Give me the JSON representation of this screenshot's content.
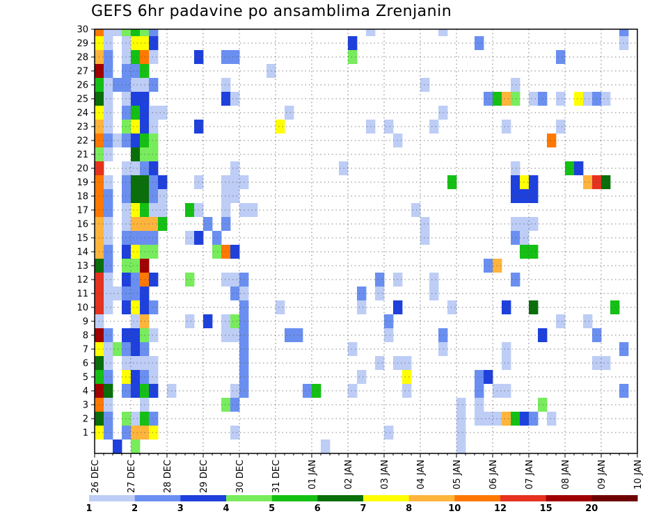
{
  "chart_data": {
    "type": "heatmap",
    "title": "GEFS 6hr padavine po ansamblima Zrenjanin",
    "y_members": [
      1,
      2,
      3,
      4,
      5,
      6,
      7,
      8,
      9,
      10,
      11,
      12,
      13,
      14,
      15,
      16,
      17,
      18,
      19,
      20,
      21,
      22,
      23,
      24,
      25,
      26,
      27,
      28,
      29,
      30
    ],
    "y_tick_labels": [
      "1",
      "2",
      "3",
      "4",
      "5",
      "6",
      "7",
      "8",
      "9",
      "10",
      "11",
      "12",
      "13",
      "14",
      "15",
      "16",
      "17",
      "18",
      "19",
      "20",
      "21",
      "22",
      "23",
      "24",
      "25",
      "26",
      "27",
      "28",
      "29",
      "30"
    ],
    "x_tick_labels": [
      "26 DEC",
      "27 DEC",
      "28 DEC",
      "29 DEC",
      "30 DEC",
      "31 DEC",
      "01 JAN",
      "02 JAN",
      "03 JAN",
      "04 JAN",
      "05 JAN",
      "06 JAN",
      "07 JAN",
      "08 JAN",
      "09 JAN",
      "10 JAN"
    ],
    "time_step": "6hr",
    "grid": true,
    "colorbar": {
      "colors": [
        "#bdcdf5",
        "#6a8ff0",
        "#1e40dc",
        "#78ec5c",
        "#14c014",
        "#0a6e0a",
        "#ffff00",
        "#ffb43c",
        "#ff7800",
        "#e6321e",
        "#a00000",
        "#6e0000"
      ],
      "labels": [
        "1",
        "2",
        "3",
        "4",
        "5",
        "6",
        "7",
        "8",
        "10",
        "12",
        "15",
        "20"
      ]
    },
    "cells": [
      [
        0,
        1,
        7
      ],
      [
        0,
        2,
        6
      ],
      [
        0,
        3,
        9
      ],
      [
        0,
        4,
        11
      ],
      [
        0,
        5,
        5
      ],
      [
        0,
        6,
        6
      ],
      [
        0,
        7,
        7
      ],
      [
        0,
        8,
        11
      ],
      [
        0,
        9,
        1
      ],
      [
        0,
        10,
        10
      ],
      [
        0,
        11,
        10
      ],
      [
        0,
        12,
        10
      ],
      [
        0,
        13,
        6
      ],
      [
        0,
        14,
        8
      ],
      [
        0,
        15,
        8
      ],
      [
        0,
        16,
        8
      ],
      [
        0,
        17,
        9
      ],
      [
        0,
        18,
        9
      ],
      [
        0,
        19,
        9
      ],
      [
        0,
        20,
        10
      ],
      [
        0,
        21,
        4
      ],
      [
        0,
        22,
        9
      ],
      [
        0,
        23,
        8
      ],
      [
        0,
        24,
        7
      ],
      [
        0,
        25,
        6
      ],
      [
        0,
        26,
        5
      ],
      [
        0,
        27,
        11
      ],
      [
        0,
        28,
        8
      ],
      [
        0,
        29,
        7
      ],
      [
        0,
        30,
        9
      ],
      [
        1,
        1,
        2
      ],
      [
        1,
        2,
        2
      ],
      [
        1,
        3,
        1
      ],
      [
        1,
        4,
        6
      ],
      [
        1,
        5,
        2
      ],
      [
        1,
        6,
        1
      ],
      [
        1,
        7,
        1
      ],
      [
        1,
        8,
        2
      ],
      [
        1,
        10,
        1
      ],
      [
        1,
        11,
        1
      ],
      [
        1,
        12,
        1
      ],
      [
        1,
        13,
        2
      ],
      [
        1,
        14,
        2
      ],
      [
        1,
        15,
        1
      ],
      [
        1,
        16,
        1
      ],
      [
        1,
        17,
        2
      ],
      [
        1,
        18,
        2
      ],
      [
        1,
        19,
        1
      ],
      [
        1,
        21,
        1
      ],
      [
        1,
        22,
        2
      ],
      [
        1,
        23,
        1
      ],
      [
        1,
        24,
        1
      ],
      [
        1,
        25,
        1
      ],
      [
        1,
        26,
        1
      ],
      [
        1,
        27,
        2
      ],
      [
        1,
        28,
        2
      ],
      [
        1,
        29,
        1
      ],
      [
        1,
        30,
        1
      ],
      [
        2,
        0,
        3
      ],
      [
        2,
        7,
        4
      ],
      [
        2,
        11,
        1
      ],
      [
        2,
        22,
        1
      ],
      [
        2,
        26,
        2
      ],
      [
        2,
        30,
        1
      ],
      [
        3,
        1,
        2
      ],
      [
        3,
        2,
        4
      ],
      [
        3,
        4,
        2
      ],
      [
        3,
        5,
        7
      ],
      [
        3,
        6,
        1
      ],
      [
        3,
        7,
        2
      ],
      [
        3,
        8,
        3
      ],
      [
        3,
        10,
        3
      ],
      [
        3,
        11,
        2
      ],
      [
        3,
        12,
        3
      ],
      [
        3,
        13,
        4
      ],
      [
        3,
        14,
        3
      ],
      [
        3,
        15,
        2
      ],
      [
        3,
        16,
        1
      ],
      [
        3,
        17,
        1
      ],
      [
        3,
        18,
        2
      ],
      [
        3,
        19,
        2
      ],
      [
        3,
        20,
        1
      ],
      [
        3,
        22,
        2
      ],
      [
        3,
        23,
        4
      ],
      [
        3,
        24,
        2
      ],
      [
        3,
        25,
        1
      ],
      [
        3,
        26,
        2
      ],
      [
        3,
        27,
        2
      ],
      [
        3,
        28,
        1
      ],
      [
        3,
        29,
        1
      ],
      [
        3,
        30,
        4
      ],
      [
        4,
        0,
        4
      ],
      [
        4,
        1,
        8
      ],
      [
        4,
        2,
        1
      ],
      [
        4,
        4,
        3
      ],
      [
        4,
        5,
        3
      ],
      [
        4,
        6,
        1
      ],
      [
        4,
        7,
        3
      ],
      [
        4,
        8,
        3
      ],
      [
        4,
        9,
        1
      ],
      [
        4,
        10,
        7
      ],
      [
        4,
        11,
        2
      ],
      [
        4,
        12,
        2
      ],
      [
        4,
        13,
        4
      ],
      [
        4,
        14,
        7
      ],
      [
        4,
        15,
        2
      ],
      [
        4,
        16,
        8
      ],
      [
        4,
        17,
        7
      ],
      [
        4,
        18,
        6
      ],
      [
        4,
        19,
        6
      ],
      [
        4,
        20,
        1
      ],
      [
        4,
        21,
        6
      ],
      [
        4,
        22,
        3
      ],
      [
        4,
        23,
        7
      ],
      [
        4,
        24,
        5
      ],
      [
        4,
        25,
        3
      ],
      [
        4,
        26,
        1
      ],
      [
        4,
        27,
        2
      ],
      [
        4,
        28,
        5
      ],
      [
        4,
        29,
        7
      ],
      [
        4,
        30,
        5
      ],
      [
        5,
        1,
        8
      ],
      [
        5,
        2,
        5
      ],
      [
        5,
        3,
        1
      ],
      [
        5,
        4,
        5
      ],
      [
        5,
        5,
        2
      ],
      [
        5,
        6,
        1
      ],
      [
        5,
        7,
        2
      ],
      [
        5,
        8,
        4
      ],
      [
        5,
        9,
        8
      ],
      [
        5,
        10,
        3
      ],
      [
        5,
        11,
        3
      ],
      [
        5,
        12,
        9
      ],
      [
        5,
        13,
        11
      ],
      [
        5,
        14,
        4
      ],
      [
        5,
        15,
        2
      ],
      [
        5,
        16,
        8
      ],
      [
        5,
        17,
        5
      ],
      [
        5,
        18,
        6
      ],
      [
        5,
        19,
        6
      ],
      [
        5,
        20,
        2
      ],
      [
        5,
        21,
        4
      ],
      [
        5,
        22,
        5
      ],
      [
        5,
        23,
        3
      ],
      [
        5,
        24,
        3
      ],
      [
        5,
        25,
        3
      ],
      [
        5,
        26,
        1
      ],
      [
        5,
        27,
        5
      ],
      [
        5,
        28,
        9
      ],
      [
        5,
        29,
        7
      ],
      [
        5,
        30,
        4
      ],
      [
        6,
        1,
        7
      ],
      [
        6,
        2,
        2
      ],
      [
        6,
        4,
        3
      ],
      [
        6,
        5,
        1
      ],
      [
        6,
        6,
        1
      ],
      [
        6,
        8,
        1
      ],
      [
        6,
        10,
        2
      ],
      [
        6,
        12,
        3
      ],
      [
        6,
        14,
        4
      ],
      [
        6,
        15,
        2
      ],
      [
        6,
        16,
        8
      ],
      [
        6,
        17,
        1
      ],
      [
        6,
        18,
        2
      ],
      [
        6,
        19,
        2
      ],
      [
        6,
        20,
        3
      ],
      [
        6,
        21,
        4
      ],
      [
        6,
        22,
        4
      ],
      [
        6,
        23,
        1
      ],
      [
        6,
        24,
        1
      ],
      [
        6,
        26,
        2
      ],
      [
        6,
        28,
        1
      ],
      [
        6,
        29,
        3
      ],
      [
        6,
        30,
        2
      ],
      [
        7,
        16,
        5
      ],
      [
        7,
        17,
        1
      ],
      [
        7,
        18,
        1
      ],
      [
        7,
        19,
        3
      ],
      [
        7,
        24,
        1
      ],
      [
        8,
        4,
        1
      ],
      [
        10,
        9,
        1
      ],
      [
        10,
        12,
        4
      ],
      [
        10,
        15,
        1
      ],
      [
        10,
        17,
        5
      ],
      [
        11,
        15,
        3
      ],
      [
        11,
        17,
        1
      ],
      [
        11,
        19,
        1
      ],
      [
        11,
        23,
        3
      ],
      [
        11,
        28,
        3
      ],
      [
        12,
        9,
        3
      ],
      [
        12,
        16,
        2
      ],
      [
        13,
        14,
        4
      ],
      [
        13,
        15,
        2
      ],
      [
        14,
        3,
        4
      ],
      [
        14,
        8,
        1
      ],
      [
        14,
        9,
        1
      ],
      [
        14,
        12,
        1
      ],
      [
        14,
        14,
        9
      ],
      [
        14,
        16,
        2
      ],
      [
        14,
        17,
        1
      ],
      [
        14,
        18,
        1
      ],
      [
        14,
        19,
        1
      ],
      [
        14,
        25,
        3
      ],
      [
        14,
        26,
        1
      ],
      [
        14,
        28,
        2
      ],
      [
        15,
        1,
        1
      ],
      [
        15,
        3,
        2
      ],
      [
        15,
        4,
        1
      ],
      [
        15,
        8,
        1
      ],
      [
        15,
        9,
        4
      ],
      [
        15,
        11,
        2
      ],
      [
        15,
        12,
        1
      ],
      [
        15,
        14,
        3
      ],
      [
        15,
        18,
        1
      ],
      [
        15,
        19,
        1
      ],
      [
        15,
        20,
        1
      ],
      [
        15,
        25,
        1
      ],
      [
        15,
        28,
        2
      ],
      [
        16,
        4,
        2
      ],
      [
        16,
        5,
        2
      ],
      [
        16,
        6,
        2
      ],
      [
        16,
        7,
        2
      ],
      [
        16,
        8,
        2
      ],
      [
        16,
        9,
        2
      ],
      [
        16,
        10,
        2
      ],
      [
        16,
        11,
        1
      ],
      [
        16,
        12,
        2
      ],
      [
        16,
        17,
        1
      ],
      [
        16,
        19,
        1
      ],
      [
        17,
        17,
        1
      ],
      [
        19,
        27,
        1
      ],
      [
        20,
        10,
        1
      ],
      [
        20,
        23,
        7
      ],
      [
        21,
        8,
        2
      ],
      [
        21,
        24,
        1
      ],
      [
        22,
        8,
        2
      ],
      [
        23,
        4,
        2
      ],
      [
        24,
        4,
        5
      ],
      [
        25,
        0,
        1
      ],
      [
        27,
        20,
        1
      ],
      [
        28,
        4,
        1
      ],
      [
        28,
        7,
        1
      ],
      [
        28,
        28,
        4
      ],
      [
        28,
        29,
        3
      ],
      [
        29,
        5,
        1
      ],
      [
        29,
        10,
        1
      ],
      [
        29,
        11,
        2
      ],
      [
        30,
        23,
        1
      ],
      [
        30,
        30,
        1
      ],
      [
        31,
        6,
        1
      ],
      [
        31,
        11,
        1
      ],
      [
        31,
        12,
        2
      ],
      [
        32,
        1,
        1
      ],
      [
        32,
        8,
        1
      ],
      [
        32,
        9,
        2
      ],
      [
        32,
        23,
        1
      ],
      [
        33,
        6,
        1
      ],
      [
        33,
        10,
        3
      ],
      [
        33,
        12,
        1
      ],
      [
        33,
        22,
        1
      ],
      [
        34,
        4,
        1
      ],
      [
        34,
        5,
        7
      ],
      [
        34,
        6,
        1
      ],
      [
        35,
        17,
        1
      ],
      [
        36,
        15,
        1
      ],
      [
        36,
        16,
        1
      ],
      [
        36,
        26,
        1
      ],
      [
        37,
        11,
        1
      ],
      [
        37,
        12,
        1
      ],
      [
        37,
        23,
        1
      ],
      [
        38,
        7,
        1
      ],
      [
        38,
        8,
        2
      ],
      [
        38,
        24,
        1
      ],
      [
        38,
        30,
        1
      ],
      [
        39,
        10,
        1
      ],
      [
        39,
        19,
        5
      ],
      [
        40,
        0,
        1
      ],
      [
        40,
        1,
        1
      ],
      [
        40,
        2,
        1
      ],
      [
        40,
        3,
        1
      ],
      [
        42,
        2,
        1
      ],
      [
        42,
        3,
        1
      ],
      [
        42,
        4,
        2
      ],
      [
        42,
        5,
        2
      ],
      [
        42,
        29,
        2
      ],
      [
        43,
        2,
        1
      ],
      [
        43,
        5,
        3
      ],
      [
        43,
        13,
        2
      ],
      [
        43,
        25,
        2
      ],
      [
        44,
        2,
        1
      ],
      [
        44,
        4,
        1
      ],
      [
        44,
        13,
        8
      ],
      [
        44,
        25,
        5
      ],
      [
        45,
        2,
        8
      ],
      [
        45,
        4,
        1
      ],
      [
        45,
        6,
        1
      ],
      [
        45,
        7,
        1
      ],
      [
        45,
        10,
        3
      ],
      [
        45,
        23,
        1
      ],
      [
        45,
        25,
        8
      ],
      [
        46,
        2,
        5
      ],
      [
        46,
        12,
        2
      ],
      [
        46,
        15,
        2
      ],
      [
        46,
        16,
        1
      ],
      [
        46,
        18,
        3
      ],
      [
        46,
        19,
        3
      ],
      [
        46,
        20,
        1
      ],
      [
        46,
        25,
        4
      ],
      [
        46,
        26,
        1
      ],
      [
        47,
        2,
        3
      ],
      [
        47,
        14,
        5
      ],
      [
        47,
        15,
        1
      ],
      [
        47,
        16,
        1
      ],
      [
        47,
        18,
        3
      ],
      [
        47,
        19,
        7
      ],
      [
        48,
        2,
        2
      ],
      [
        48,
        10,
        6
      ],
      [
        48,
        14,
        5
      ],
      [
        48,
        16,
        1
      ],
      [
        48,
        18,
        3
      ],
      [
        48,
        19,
        3
      ],
      [
        48,
        25,
        1
      ],
      [
        49,
        3,
        4
      ],
      [
        49,
        8,
        3
      ],
      [
        49,
        25,
        2
      ],
      [
        50,
        2,
        1
      ],
      [
        50,
        22,
        9
      ],
      [
        51,
        9,
        1
      ],
      [
        51,
        23,
        1
      ],
      [
        51,
        25,
        1
      ],
      [
        51,
        28,
        2
      ],
      [
        52,
        20,
        5
      ],
      [
        53,
        20,
        3
      ],
      [
        53,
        25,
        7
      ],
      [
        54,
        9,
        1
      ],
      [
        54,
        25,
        1
      ],
      [
        54,
        19,
        8
      ],
      [
        55,
        6,
        1
      ],
      [
        55,
        8,
        2
      ],
      [
        55,
        19,
        10
      ],
      [
        55,
        25,
        2
      ],
      [
        56,
        6,
        1
      ],
      [
        56,
        19,
        6
      ],
      [
        56,
        25,
        1
      ],
      [
        57,
        10,
        5
      ],
      [
        58,
        4,
        2
      ],
      [
        58,
        7,
        2
      ],
      [
        58,
        29,
        1
      ],
      [
        58,
        30,
        2
      ]
    ]
  }
}
